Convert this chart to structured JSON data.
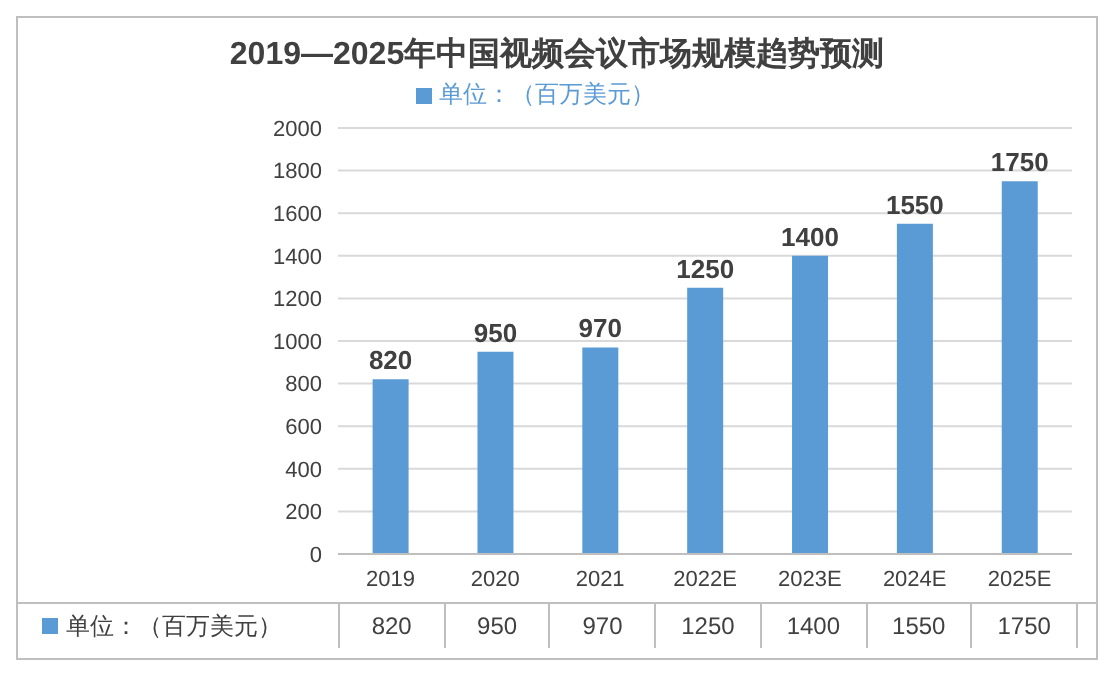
{
  "chart_data": {
    "type": "bar",
    "title": "2019—2025年中国视频会议市场规模趋势预测",
    "categories": [
      "2019",
      "2020",
      "2021",
      "2022E",
      "2023E",
      "2024E",
      "2025E"
    ],
    "series": [
      {
        "name": "单位：（百万美元）",
        "color": "#5b9bd5",
        "values": [
          820,
          950,
          970,
          1250,
          1400,
          1550,
          1750
        ],
        "value_labels": [
          "820",
          "950",
          "970",
          "1250",
          "1400",
          "1550",
          "1750"
        ]
      }
    ],
    "ylim": [
      0,
      2000
    ],
    "yticks": [
      0,
      200,
      400,
      600,
      800,
      1000,
      1200,
      1400,
      1600,
      1800,
      2000
    ],
    "grid": "y",
    "legend": "top",
    "data_labels": true
  }
}
